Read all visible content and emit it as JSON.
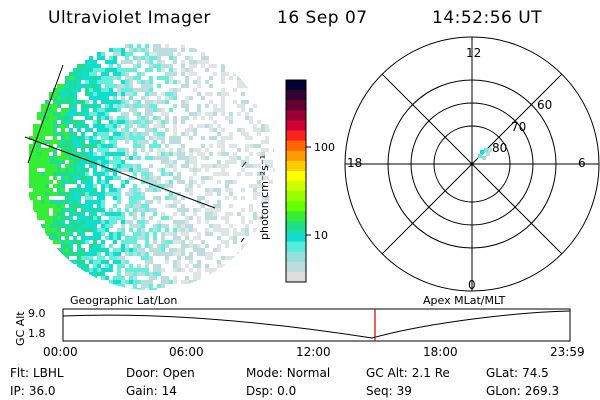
{
  "header": {
    "instrument": "Ultraviolet Imager",
    "date": "16 Sep 07",
    "time": "14:52:56 UT"
  },
  "colorbar": {
    "unit_label": "photon cm⁻²s⁻¹",
    "tick_labels": [
      "100",
      "10"
    ],
    "colors": [
      "#000033",
      "#330033",
      "#660033",
      "#990033",
      "#cc0033",
      "#ff2222",
      "#ff6600",
      "#ff9900",
      "#ffcc00",
      "#ffff00",
      "#ccff00",
      "#99ff00",
      "#66ff00",
      "#33ee33",
      "#22dd88",
      "#11ddcc",
      "#55eedd",
      "#99dddd",
      "#bbdddd",
      "#dddddd"
    ]
  },
  "polar_plot": {
    "mlt_labels": {
      "top": "12",
      "left": "18",
      "right": "6",
      "bottom": "0"
    },
    "lat_labels": [
      "60",
      "70",
      "80"
    ],
    "lat_rings": [
      60,
      70,
      80
    ]
  },
  "timeline": {
    "left_title": "Geographic Lat/Lon",
    "right_title": "Apex MLat/MLT",
    "y_axis_label": "GC Alt",
    "y_labels": [
      "9.0",
      "1.8"
    ],
    "time_ticks": [
      "00:00",
      "06:00",
      "12:00",
      "18:00",
      "23:59"
    ],
    "marker_color": "#cc0000"
  },
  "info_fields": [
    {
      "label": "Flt:",
      "value": "LBHL"
    },
    {
      "label": "Door:",
      "value": "Open"
    },
    {
      "label": "Mode:",
      "value": "Normal"
    },
    {
      "label": "GC Alt:",
      "value": "2.1 Re"
    },
    {
      "label": "GLat:",
      "value": "74.5"
    },
    {
      "label": "IP:",
      "value": "36.0"
    },
    {
      "label": "Gain:",
      "value": "14"
    },
    {
      "label": "Dsp:",
      "value": "0.0"
    },
    {
      "label": "Seq:",
      "value": "39"
    },
    {
      "label": "GLon:",
      "value": "269.3"
    }
  ]
}
